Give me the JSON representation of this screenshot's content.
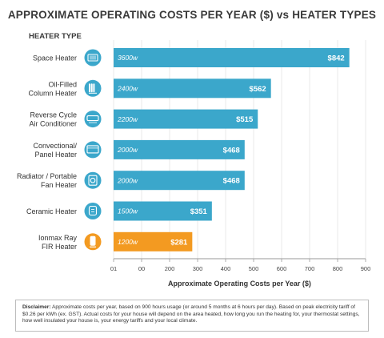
{
  "title": "APPROXIMATE OPERATING COSTS PER YEAR ($) vs HEATER TYPES",
  "disclaimer": {
    "label": "Disclaimer:",
    "text": "Approximate costs per year, based on 900 hours usage (or around 5 months at 6 hours per day).  Based on peak electricity tariff of  $0.26 per kWh (ex. GST). Actual costs for your house will depend on the area heated, how long you run the heating for, your thermostat settings, how well insulated your house is, your energy tariffs and your local climate."
  },
  "colors": {
    "bar": "#3ba7cb",
    "highlight": "#f39a21",
    "axis": "#9a9a9a",
    "icon": "#3ba7cb"
  },
  "chart_data": {
    "type": "bar",
    "orientation": "horizontal",
    "y_header": "HEATER TYPE",
    "xlabel": "Approximate Operating Costs per Year ($)",
    "xlim": [
      0,
      900
    ],
    "xticks": [
      "01",
      "00",
      "200",
      "300",
      "400",
      "500",
      "600",
      "700",
      "800",
      "900"
    ],
    "categories": [
      {
        "label": [
          "Space Heater"
        ],
        "wattage": "3600w",
        "value": 842,
        "value_label": "$842",
        "icon": "space-heater-icon",
        "highlight": false
      },
      {
        "label": [
          "Oil-Filled",
          "Column Heater"
        ],
        "wattage": "2400w",
        "value": 562,
        "value_label": "$562",
        "icon": "oil-column-heater-icon",
        "highlight": false
      },
      {
        "label": [
          "Reverse Cycle",
          "Air Conditioner"
        ],
        "wattage": "2200w",
        "value": 515,
        "value_label": "$515",
        "icon": "air-conditioner-icon",
        "highlight": false
      },
      {
        "label": [
          "Convectional/",
          "Panel Heater"
        ],
        "wattage": "2000w",
        "value": 468,
        "value_label": "$468",
        "icon": "panel-heater-icon",
        "highlight": false
      },
      {
        "label": [
          "Radiator / Portable",
          "Fan Heater"
        ],
        "wattage": "2000w",
        "value": 468,
        "value_label": "$468",
        "icon": "fan-heater-icon",
        "highlight": false
      },
      {
        "label": [
          "Ceramic Heater"
        ],
        "wattage": "1500w",
        "value": 351,
        "value_label": "$351",
        "icon": "ceramic-heater-icon",
        "highlight": false
      },
      {
        "label": [
          "Ionmax Ray",
          "FIR Heater"
        ],
        "wattage": "1200w",
        "value": 281,
        "value_label": "$281",
        "icon": "fir-heater-icon",
        "highlight": true
      }
    ]
  }
}
